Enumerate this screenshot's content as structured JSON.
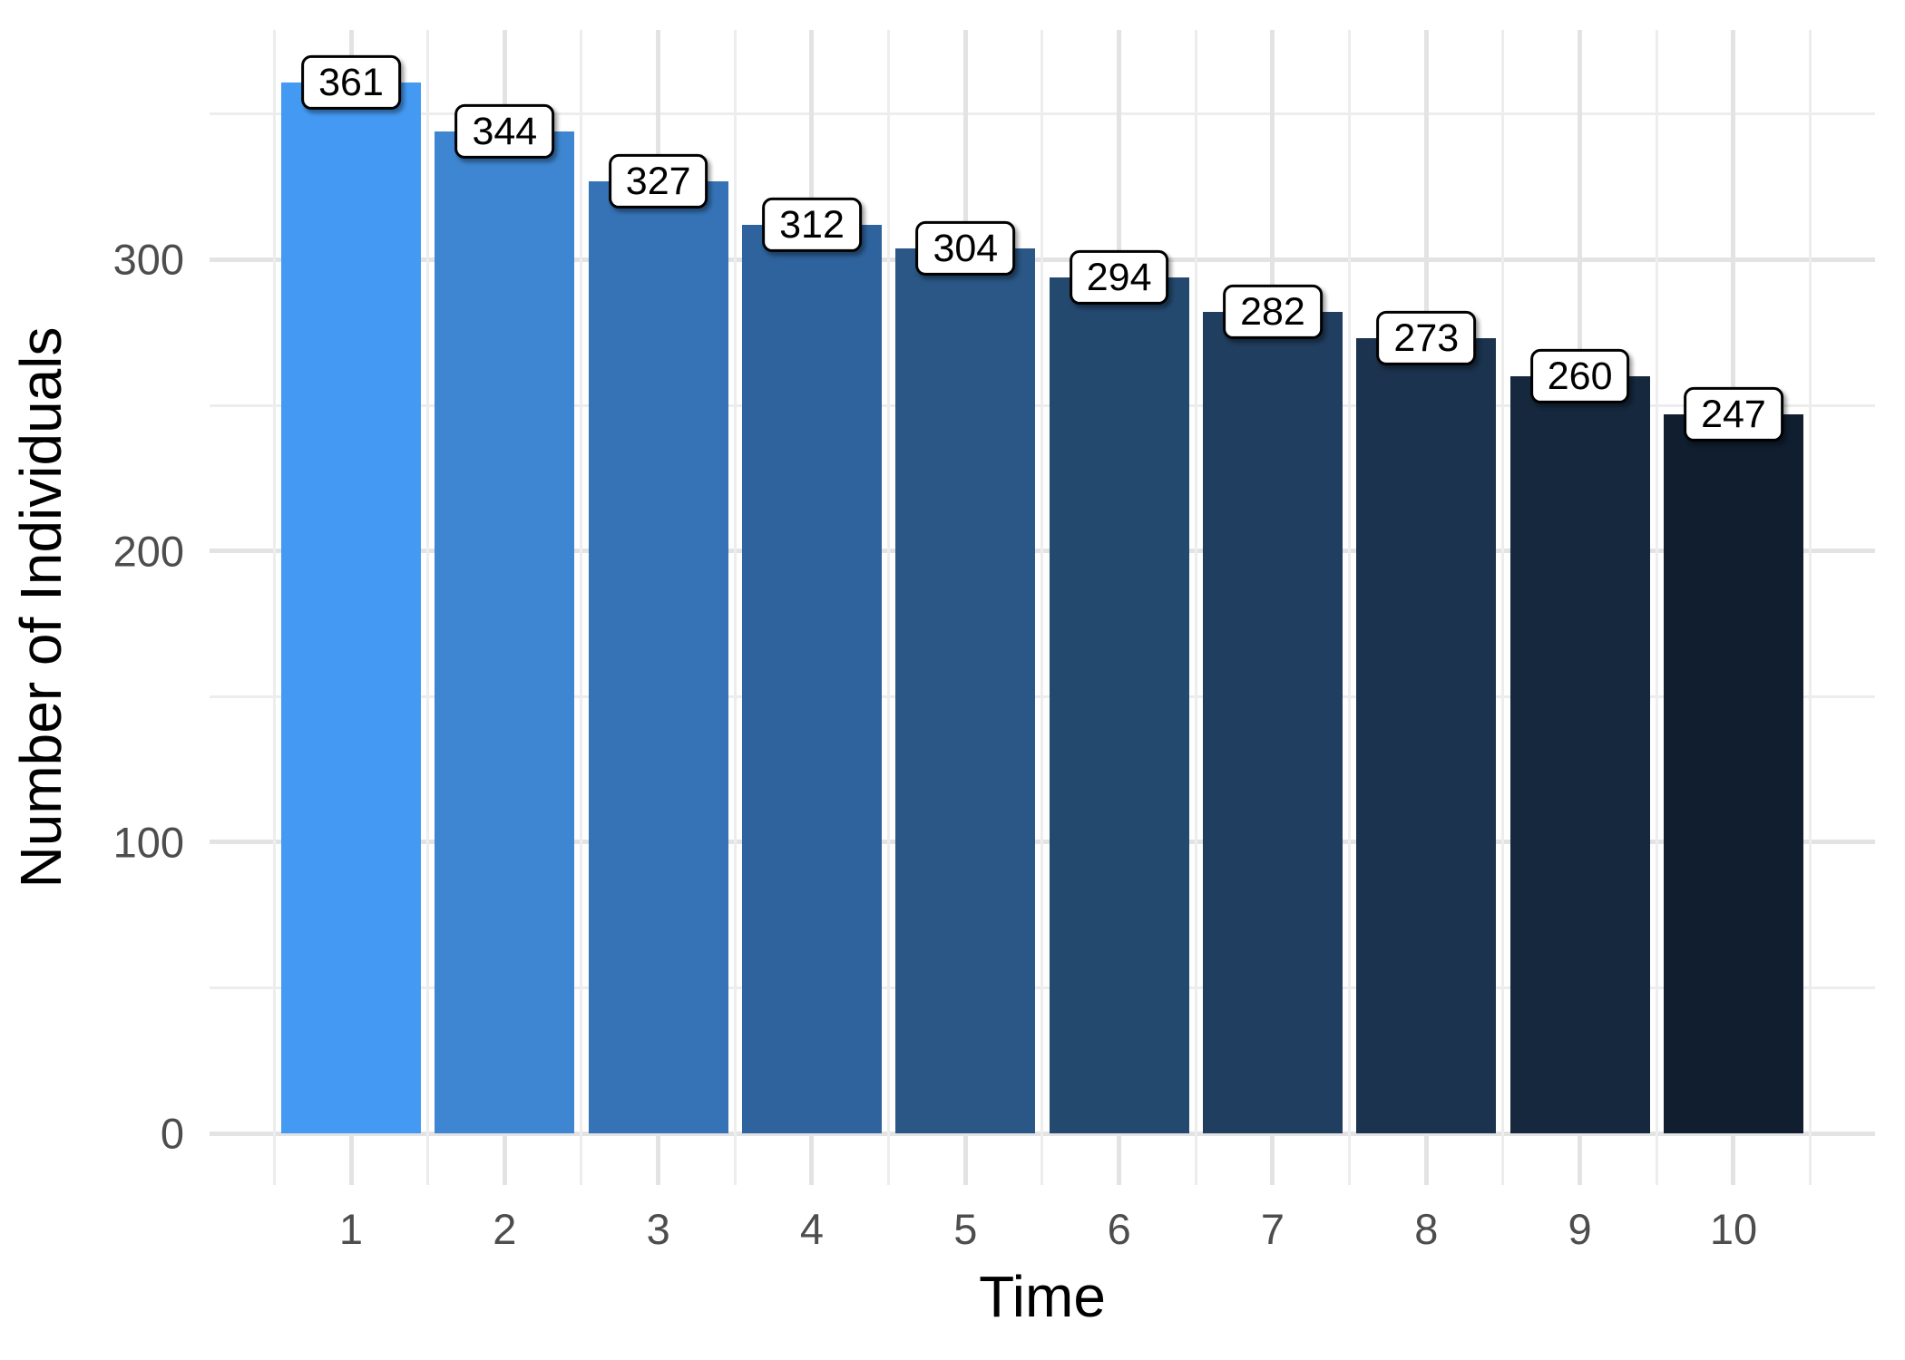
{
  "chart_data": {
    "type": "bar",
    "title": "",
    "xlabel": "Time",
    "ylabel": "Number of Individuals",
    "categories": [
      "1",
      "2",
      "3",
      "4",
      "5",
      "6",
      "7",
      "8",
      "9",
      "10"
    ],
    "x": [
      1,
      2,
      3,
      4,
      5,
      6,
      7,
      8,
      9,
      10
    ],
    "values": [
      361,
      344,
      327,
      312,
      304,
      294,
      282,
      273,
      260,
      247
    ],
    "value_labels": [
      "361",
      "344",
      "327",
      "312",
      "304",
      "294",
      "282",
      "273",
      "260",
      "247"
    ],
    "bar_colors": [
      "#449af3",
      "#3e86d2",
      "#3573b6",
      "#2e639d",
      "#2a5786",
      "#24496f",
      "#203e5f",
      "#1b334e",
      "#15283e",
      "#101e30"
    ],
    "ylim": [
      0,
      379
    ],
    "yticks": [
      0,
      100,
      200,
      300
    ],
    "ytick_labels": [
      "0",
      "100",
      "200",
      "300"
    ],
    "minor_yticks": [
      50,
      150,
      250,
      350
    ],
    "grid": "major-and-minor, no axis lines, white background",
    "legend_position": "none",
    "colors": {
      "grid_major": "#e3e3e3",
      "grid_minor": "#ededed",
      "tick_text": "#4d4d4d",
      "axis_title_text": "#000000",
      "value_label_fill": "#ffffff",
      "value_label_border": "#000000",
      "value_label_text": "#000000",
      "background": "#ffffff"
    }
  }
}
